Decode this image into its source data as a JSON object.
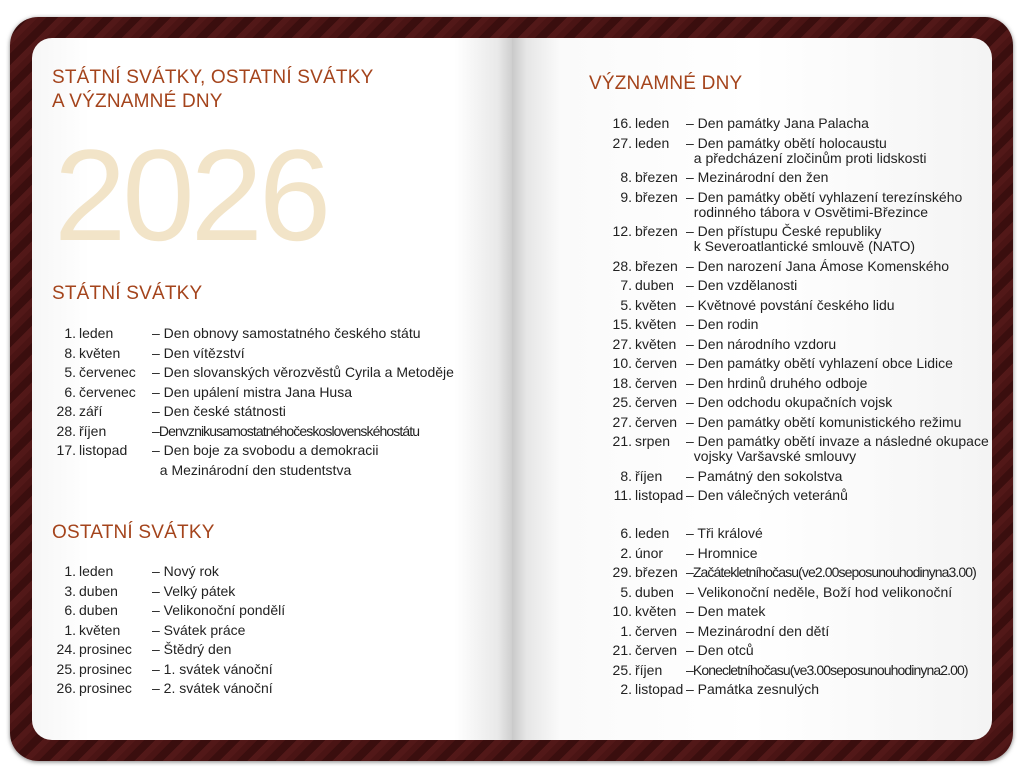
{
  "left_page": {
    "title_lines": [
      "STÁTNÍ SVÁTKY, OSTATNÍ SVÁTKY",
      "A VÝZNAMNÉ DNY"
    ],
    "year": "2026",
    "statni_svatky": {
      "heading": "STÁTNÍ SVÁTKY",
      "items": [
        {
          "num": "1.",
          "month": "leden",
          "desc": "– Den obnovy samostatného českého státu"
        },
        {
          "num": "8.",
          "month": "květen",
          "desc": "– Den vítězství"
        },
        {
          "num": "5.",
          "month": "červenec",
          "desc": "– Den slovanských věrozvěstů Cyrila a Metoděje"
        },
        {
          "num": "6.",
          "month": "červenec",
          "desc": "– Den upálení mistra Jana Husa"
        },
        {
          "num": "28.",
          "month": "září",
          "desc": "– Den české státnosti"
        },
        {
          "num": "28.",
          "month": "říjen",
          "desc": "–Denvznikusamostatnéhočeskoslovenskéhostátu"
        },
        {
          "num": "17.",
          "month": "listopad",
          "desc": "– Den boje za svobodu a demokracii\n  a Mezinárodní den studentstva"
        }
      ]
    },
    "ostatni_svatky": {
      "heading": "OSTATNÍ SVÁTKY",
      "items": [
        {
          "num": "1.",
          "month": "leden",
          "desc": "– Nový rok"
        },
        {
          "num": "3.",
          "month": "duben",
          "desc": "– Velký pátek"
        },
        {
          "num": "6.",
          "month": "duben",
          "desc": "– Velikonoční pondělí"
        },
        {
          "num": "1.",
          "month": "květen",
          "desc": "– Svátek práce"
        },
        {
          "num": "24.",
          "month": "prosinec",
          "desc": "– Štědrý den"
        },
        {
          "num": "25.",
          "month": "prosinec",
          "desc": "– 1. svátek vánoční"
        },
        {
          "num": "26.",
          "month": "prosinec",
          "desc": "– 2. svátek vánoční"
        }
      ]
    }
  },
  "right_page": {
    "heading": "VÝZNAMNÉ DNY",
    "items": [
      {
        "num": "16.",
        "month": "leden",
        "desc": "– Den památky Jana Palacha"
      },
      {
        "num": "27.",
        "month": "leden",
        "desc": "– Den památky obětí holocaustu\n  a předcházení zločinům proti lidskosti"
      },
      {
        "num": "8.",
        "month": "březen",
        "desc": "– Mezinárodní den žen"
      },
      {
        "num": "9.",
        "month": "březen",
        "desc": "– Den památky obětí vyhlazení terezínského\n  rodinného tábora v Osvětimi-Březince"
      },
      {
        "num": "12.",
        "month": "březen",
        "desc": "– Den přístupu České republiky\n  k Severoatlantické smlouvě (NATO)"
      },
      {
        "num": "28.",
        "month": "březen",
        "desc": "– Den narození Jana Ámose Komenského"
      },
      {
        "num": "7.",
        "month": "duben",
        "desc": "– Den vzdělanosti"
      },
      {
        "num": "5.",
        "month": "květen",
        "desc": "– Květnové povstání českého lidu"
      },
      {
        "num": "15.",
        "month": "květen",
        "desc": "– Den rodin"
      },
      {
        "num": "27.",
        "month": "květen",
        "desc": "– Den národního vzdoru"
      },
      {
        "num": "10.",
        "month": "červen",
        "desc": "– Den památky obětí vyhlazení obce Lidice"
      },
      {
        "num": "18.",
        "month": "červen",
        "desc": "– Den hrdinů druhého odboje"
      },
      {
        "num": "25.",
        "month": "červen",
        "desc": "– Den odchodu okupačních vojsk"
      },
      {
        "num": "27.",
        "month": "červen",
        "desc": "– Den památky obětí komunistického režimu"
      },
      {
        "num": "21.",
        "month": "srpen",
        "desc": "– Den památky obětí invaze a následné okupace\n  vojsky Varšavské smlouvy"
      },
      {
        "num": "8.",
        "month": "říjen",
        "desc": "– Památný den sokolstva"
      },
      {
        "num": "11.",
        "month": "listopad",
        "desc": "– Den válečných veteránů"
      }
    ],
    "other_items": [
      {
        "num": "6.",
        "month": "leden",
        "desc": "– Tři králové"
      },
      {
        "num": "2.",
        "month": "únor",
        "desc": "– Hromnice"
      },
      {
        "num": "29.",
        "month": "březen",
        "desc": "–Začátekletníhočasu(ve2.00seposunouhodinyna3.00)"
      },
      {
        "num": "5.",
        "month": "duben",
        "desc": "– Velikonoční neděle, Boží hod velikonoční"
      },
      {
        "num": "10.",
        "month": "květen",
        "desc": "– Den matek"
      },
      {
        "num": "1.",
        "month": "červen",
        "desc": "– Mezinárodní den dětí"
      },
      {
        "num": "21.",
        "month": "červen",
        "desc": "– Den otců"
      },
      {
        "num": "25.",
        "month": "říjen",
        "desc": "–Konecletníhočasu(ve3.00seposunouhodinyna2.00)"
      },
      {
        "num": "2.",
        "month": "listopad",
        "desc": "– Památka zesnulých"
      }
    ]
  },
  "colors": {
    "cover": "#4a1414",
    "heading": "#a4441c",
    "year": "#f2e4c8",
    "text": "#222222"
  }
}
